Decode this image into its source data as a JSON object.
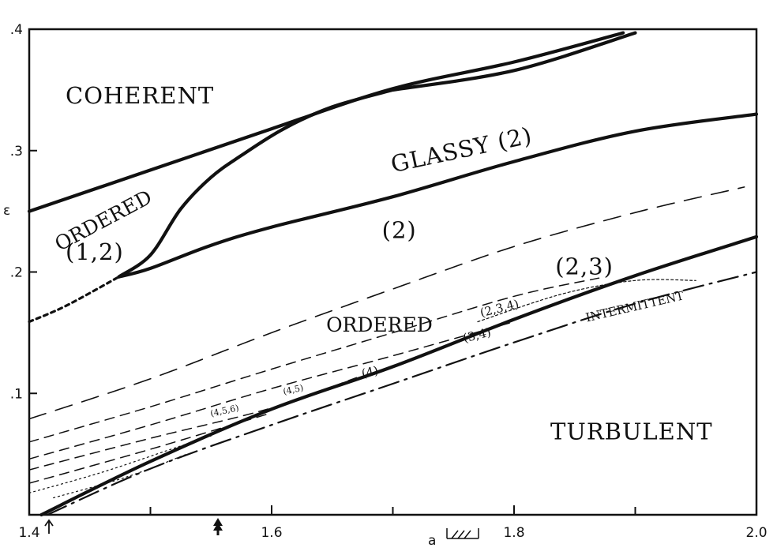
{
  "chart_data": {
    "type": "line",
    "title": "",
    "xlabel": "a",
    "ylabel": "ε",
    "xlim": [
      1.4,
      2.0
    ],
    "ylim": [
      0.0,
      0.4
    ],
    "x_tick_labels": [
      {
        "value": 1.4,
        "label": "1.4"
      },
      {
        "value": 1.6,
        "label": "1.6"
      },
      {
        "value": 1.8,
        "label": "1.8"
      },
      {
        "value": 2.0,
        "label": "2.0"
      }
    ],
    "y_tick_labels": [
      {
        "value": 0.4,
        "label": ".4"
      },
      {
        "value": 0.3,
        "label": ".3"
      },
      {
        "value": 0.2,
        "label": ".2"
      },
      {
        "value": 0.1,
        "label": ".1"
      }
    ],
    "minor_x_ticks": [
      1.5,
      1.7,
      1.9
    ],
    "series": [
      {
        "name": "upper-coherent-boundary",
        "style": "thick",
        "points": [
          [
            1.4,
            0.25
          ],
          [
            1.5,
            0.284
          ],
          [
            1.6,
            0.318
          ],
          [
            1.7,
            0.351
          ],
          [
            1.8,
            0.373
          ],
          [
            1.89,
            0.397
          ]
        ]
      },
      {
        "name": "glassy-upper-boundary",
        "style": "thick",
        "points": [
          [
            1.7,
            0.35
          ],
          [
            1.8,
            0.366
          ],
          [
            1.9,
            0.397
          ]
        ]
      },
      {
        "name": "glassy-left-boundary",
        "style": "thick",
        "points": [
          [
            1.474,
            0.196
          ],
          [
            1.5,
            0.214
          ],
          [
            1.525,
            0.252
          ],
          [
            1.55,
            0.278
          ],
          [
            1.575,
            0.296
          ],
          [
            1.61,
            0.318
          ],
          [
            1.65,
            0.336
          ],
          [
            1.7,
            0.35
          ]
        ]
      },
      {
        "name": "glassy-lower-boundary",
        "style": "thick",
        "points": [
          [
            1.474,
            0.196
          ],
          [
            1.5,
            0.203
          ],
          [
            1.55,
            0.222
          ],
          [
            1.6,
            0.237
          ],
          [
            1.7,
            0.262
          ],
          [
            1.8,
            0.291
          ],
          [
            1.9,
            0.316
          ],
          [
            2.0,
            0.33
          ]
        ]
      },
      {
        "name": "ordered12-lower",
        "style": "short-dash",
        "points": [
          [
            1.4,
            0.159
          ],
          [
            1.43,
            0.172
          ],
          [
            1.474,
            0.196
          ]
        ]
      },
      {
        "name": "long-dash-upper",
        "style": "long-dash",
        "points": [
          [
            1.4,
            0.079
          ],
          [
            1.5,
            0.112
          ],
          [
            1.6,
            0.15
          ],
          [
            1.7,
            0.186
          ],
          [
            1.8,
            0.221
          ],
          [
            1.9,
            0.249
          ],
          [
            1.99,
            0.27
          ]
        ]
      },
      {
        "name": "dash-2",
        "style": "dash",
        "points": [
          [
            1.4,
            0.06
          ],
          [
            1.5,
            0.089
          ],
          [
            1.6,
            0.12
          ],
          [
            1.7,
            0.15
          ],
          [
            1.8,
            0.18
          ],
          [
            1.87,
            0.195
          ]
        ]
      },
      {
        "name": "dash-3",
        "style": "dash",
        "points": [
          [
            1.4,
            0.046
          ],
          [
            1.5,
            0.074
          ],
          [
            1.6,
            0.104
          ],
          [
            1.7,
            0.131
          ],
          [
            1.8,
            0.159
          ]
        ]
      },
      {
        "name": "dash-4",
        "style": "dash",
        "points": [
          [
            1.4,
            0.037
          ],
          [
            1.5,
            0.063
          ],
          [
            1.6,
            0.088
          ],
          [
            1.67,
            0.113
          ]
        ]
      },
      {
        "name": "dash-5",
        "style": "dash",
        "points": [
          [
            1.4,
            0.026
          ],
          [
            1.5,
            0.054
          ],
          [
            1.6,
            0.084
          ]
        ]
      },
      {
        "name": "dotted-1",
        "style": "dotted",
        "points": [
          [
            1.4,
            0.018
          ],
          [
            1.46,
            0.035
          ],
          [
            1.52,
            0.055
          ],
          [
            1.55,
            0.065
          ]
        ]
      },
      {
        "name": "dotted-2",
        "style": "dotted",
        "points": [
          [
            1.42,
            0.014
          ],
          [
            1.48,
            0.031
          ],
          [
            1.53,
            0.05
          ]
        ]
      },
      {
        "name": "dash-grey-bump",
        "style": "dot-fine",
        "points": [
          [
            1.77,
            0.159
          ],
          [
            1.84,
            0.182
          ],
          [
            1.9,
            0.193
          ],
          [
            1.95,
            0.193
          ]
        ]
      },
      {
        "name": "turbulent-boundary",
        "style": "thick",
        "points": [
          [
            1.41,
            0.0
          ],
          [
            1.5,
            0.044
          ],
          [
            1.6,
            0.087
          ],
          [
            1.7,
            0.122
          ],
          [
            1.8,
            0.161
          ],
          [
            1.9,
            0.197
          ],
          [
            2.0,
            0.229
          ]
        ]
      },
      {
        "name": "intermittent",
        "style": "dash-dot",
        "points": [
          [
            1.415,
            0.0
          ],
          [
            1.5,
            0.038
          ],
          [
            1.6,
            0.074
          ],
          [
            1.7,
            0.108
          ],
          [
            1.8,
            0.142
          ],
          [
            1.9,
            0.174
          ],
          [
            2.0,
            0.2
          ]
        ]
      }
    ],
    "annotations": [
      {
        "text": "COHERENT",
        "x": 1.43,
        "y": 0.339
      },
      {
        "text": "GLASSY  (2)",
        "x": 1.7,
        "y": 0.282
      },
      {
        "text": "ORDERED",
        "x": 1.425,
        "y": 0.217
      },
      {
        "text": "(1,2)",
        "x": 1.43,
        "y": 0.21
      },
      {
        "text": "(2)",
        "x": 1.691,
        "y": 0.228
      },
      {
        "text": "(2,3)",
        "x": 1.834,
        "y": 0.198
      },
      {
        "text": "ORDERED",
        "x": 1.645,
        "y": 0.151
      },
      {
        "text": "(2,3,4)",
        "x": 1.773,
        "y": 0.163
      },
      {
        "text": "(3,4)",
        "x": 1.759,
        "y": 0.142
      },
      {
        "text": "(4)",
        "x": 1.675,
        "y": 0.113
      },
      {
        "text": "(4,5)",
        "x": 1.61,
        "y": 0.099
      },
      {
        "text": "(4,5,6)",
        "x": 1.55,
        "y": 0.081
      },
      {
        "text": "INTERMITTENT",
        "x": 1.86,
        "y": 0.159
      },
      {
        "text": "TURBULENT",
        "x": 1.83,
        "y": 0.062
      }
    ]
  }
}
